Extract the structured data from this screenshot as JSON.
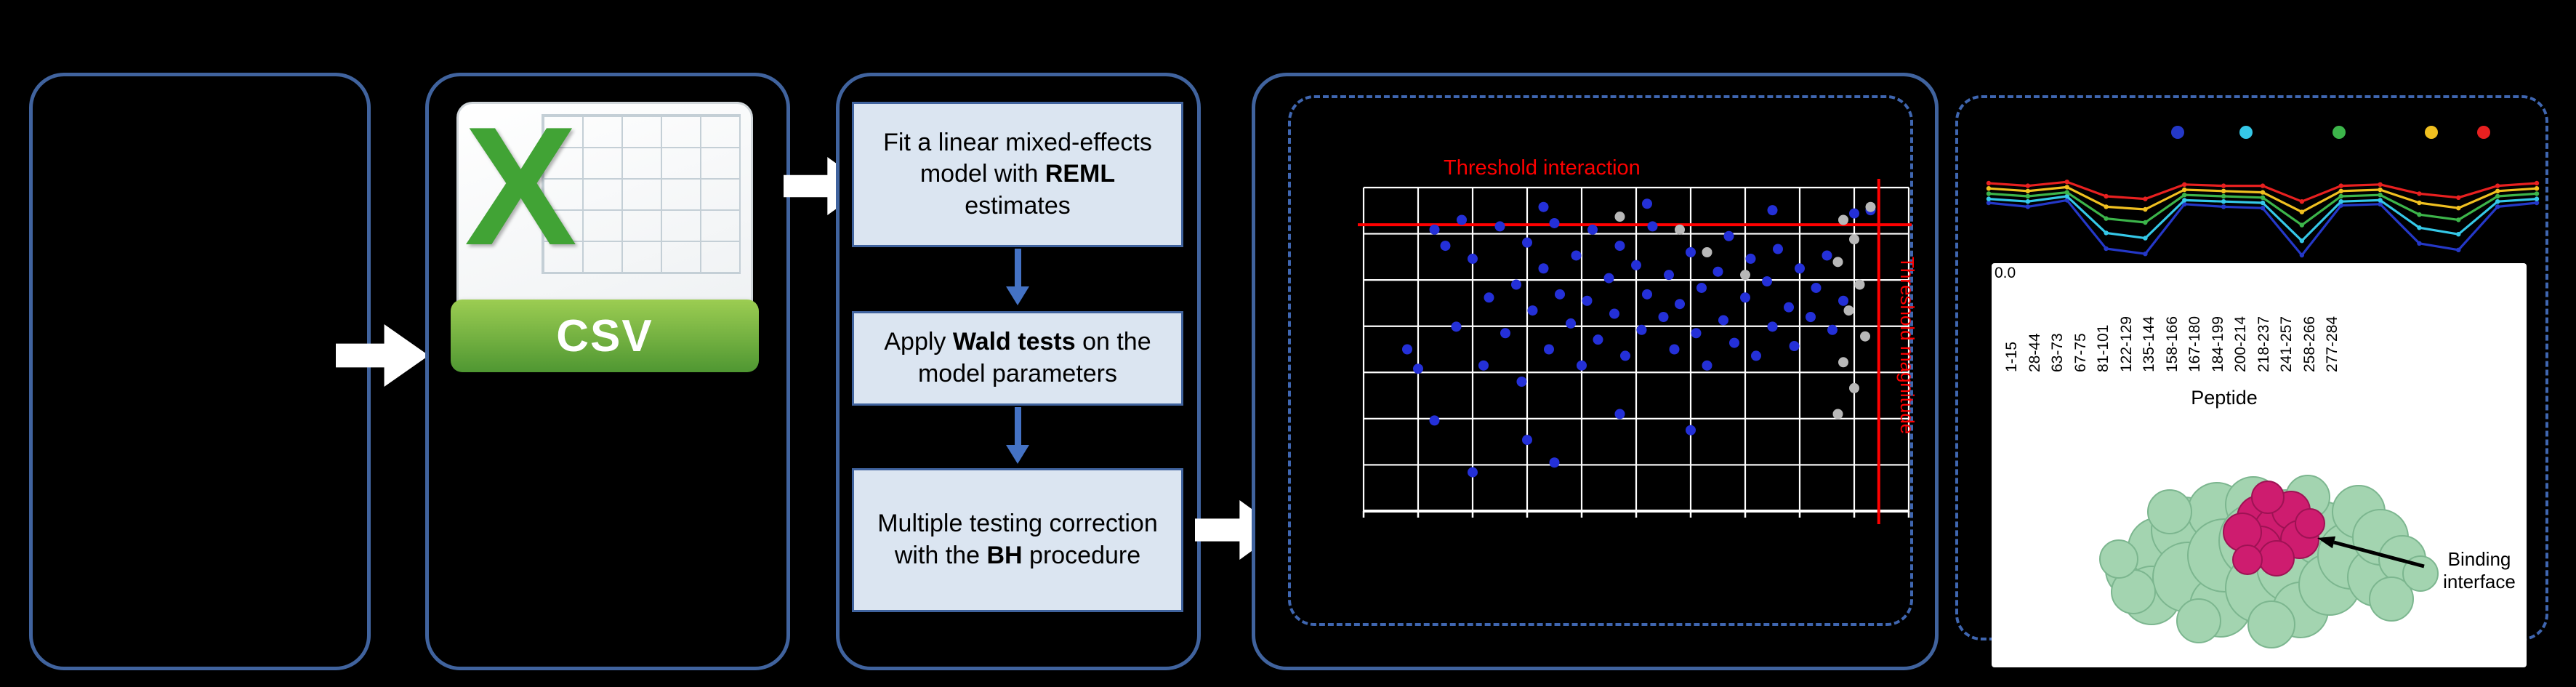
{
  "colors": {
    "background": "#000000",
    "panel_border": "#40639e",
    "dashed_border": "#3f66b0",
    "step_fill": "#dbe5f1",
    "step_border": "#40639e",
    "down_arrow": "#4472c4",
    "flow_arrow": "#ffffff",
    "csv_green": "#41a335",
    "threshold_red": "#ff0000",
    "scatter_blue": "#2430d8",
    "scatter_gray": "#b8b8b8"
  },
  "flow": {
    "csv_label": "CSV",
    "steps": [
      {
        "pre": "Fit a linear mixed-effects model with ",
        "bold": "REML",
        "post": " estimates"
      },
      {
        "pre": "Apply ",
        "bold": "Wald tests",
        "post": " on the model parameters"
      },
      {
        "pre": "Multiple testing correction with the ",
        "bold": "BH",
        "post": " procedure"
      }
    ]
  },
  "chart_data": [
    {
      "type": "scatter",
      "name": "interaction-scatter",
      "title_h": "Threshold interaction",
      "title_v": "Threshold magnitude",
      "grid_cols": 10,
      "grid_rows": 7,
      "threshold_y_frac": 0.115,
      "threshold_x_frac": 0.945,
      "blue_points": [
        [
          0.08,
          0.5
        ],
        [
          0.1,
          0.56
        ],
        [
          0.13,
          0.13
        ],
        [
          0.15,
          0.18
        ],
        [
          0.17,
          0.43
        ],
        [
          0.18,
          0.1
        ],
        [
          0.2,
          0.22
        ],
        [
          0.22,
          0.55
        ],
        [
          0.23,
          0.34
        ],
        [
          0.25,
          0.12
        ],
        [
          0.26,
          0.45
        ],
        [
          0.28,
          0.3
        ],
        [
          0.29,
          0.6
        ],
        [
          0.3,
          0.17
        ],
        [
          0.31,
          0.38
        ],
        [
          0.33,
          0.25
        ],
        [
          0.34,
          0.5
        ],
        [
          0.35,
          0.11
        ],
        [
          0.36,
          0.33
        ],
        [
          0.38,
          0.42
        ],
        [
          0.39,
          0.21
        ],
        [
          0.4,
          0.55
        ],
        [
          0.41,
          0.35
        ],
        [
          0.42,
          0.13
        ],
        [
          0.43,
          0.47
        ],
        [
          0.45,
          0.28
        ],
        [
          0.46,
          0.39
        ],
        [
          0.47,
          0.18
        ],
        [
          0.48,
          0.52
        ],
        [
          0.5,
          0.24
        ],
        [
          0.51,
          0.44
        ],
        [
          0.52,
          0.33
        ],
        [
          0.53,
          0.12
        ],
        [
          0.55,
          0.4
        ],
        [
          0.56,
          0.27
        ],
        [
          0.57,
          0.5
        ],
        [
          0.58,
          0.36
        ],
        [
          0.6,
          0.2
        ],
        [
          0.61,
          0.45
        ],
        [
          0.62,
          0.31
        ],
        [
          0.63,
          0.55
        ],
        [
          0.65,
          0.26
        ],
        [
          0.66,
          0.41
        ],
        [
          0.67,
          0.15
        ],
        [
          0.68,
          0.48
        ],
        [
          0.7,
          0.34
        ],
        [
          0.71,
          0.22
        ],
        [
          0.72,
          0.52
        ],
        [
          0.74,
          0.29
        ],
        [
          0.75,
          0.43
        ],
        [
          0.76,
          0.19
        ],
        [
          0.78,
          0.37
        ],
        [
          0.79,
          0.49
        ],
        [
          0.8,
          0.25
        ],
        [
          0.82,
          0.4
        ],
        [
          0.83,
          0.31
        ],
        [
          0.85,
          0.21
        ],
        [
          0.86,
          0.44
        ],
        [
          0.88,
          0.35
        ],
        [
          0.13,
          0.72
        ],
        [
          0.3,
          0.78
        ],
        [
          0.47,
          0.7
        ],
        [
          0.35,
          0.85
        ],
        [
          0.6,
          0.75
        ],
        [
          0.2,
          0.88
        ],
        [
          0.33,
          0.06
        ],
        [
          0.52,
          0.05
        ],
        [
          0.75,
          0.07
        ],
        [
          0.9,
          0.08
        ],
        [
          0.93,
          0.07
        ]
      ],
      "gray_points": [
        [
          0.88,
          0.1
        ],
        [
          0.9,
          0.16
        ],
        [
          0.87,
          0.23
        ],
        [
          0.91,
          0.3
        ],
        [
          0.89,
          0.38
        ],
        [
          0.92,
          0.46
        ],
        [
          0.88,
          0.54
        ],
        [
          0.9,
          0.62
        ],
        [
          0.87,
          0.7
        ],
        [
          0.93,
          0.06
        ],
        [
          0.58,
          0.13
        ],
        [
          0.63,
          0.2
        ],
        [
          0.7,
          0.27
        ],
        [
          0.47,
          0.09
        ]
      ]
    },
    {
      "type": "line",
      "name": "deuterium-uptake-per-peptide",
      "y_tick": "0.0",
      "xlabel": "Peptide",
      "peptides": [
        "1-15",
        "28-44",
        "63-73",
        "67-75",
        "81-101",
        "122-129",
        "135-144",
        "158-166",
        "167-180",
        "184-199",
        "200-214",
        "218-237",
        "241-257",
        "258-266",
        "277-284"
      ],
      "legend_colors": [
        "#2438c8",
        "#35c8e8",
        "#3cb54a",
        "#f0c020",
        "#e82020"
      ],
      "legend_x": [
        278,
        372,
        500,
        627,
        699
      ],
      "series": [
        {
          "color": "#2438c8",
          "values": [
            0.45,
            0.42,
            0.47,
            0.1,
            0.06,
            0.44,
            0.42,
            0.41,
            0.05,
            0.43,
            0.44,
            0.14,
            0.09,
            0.42,
            0.45
          ]
        },
        {
          "color": "#35c8e8",
          "values": [
            0.48,
            0.46,
            0.5,
            0.22,
            0.18,
            0.47,
            0.46,
            0.45,
            0.16,
            0.46,
            0.47,
            0.26,
            0.21,
            0.46,
            0.48
          ]
        },
        {
          "color": "#3cb54a",
          "values": [
            0.52,
            0.5,
            0.53,
            0.33,
            0.3,
            0.51,
            0.5,
            0.49,
            0.28,
            0.5,
            0.51,
            0.36,
            0.32,
            0.5,
            0.52
          ]
        },
        {
          "color": "#f0c020",
          "values": [
            0.56,
            0.54,
            0.57,
            0.42,
            0.4,
            0.55,
            0.54,
            0.53,
            0.38,
            0.54,
            0.55,
            0.45,
            0.41,
            0.54,
            0.56
          ]
        },
        {
          "color": "#e82020",
          "values": [
            0.6,
            0.58,
            0.61,
            0.5,
            0.48,
            0.59,
            0.58,
            0.58,
            0.46,
            0.58,
            0.59,
            0.52,
            0.49,
            0.58,
            0.6
          ]
        }
      ]
    }
  ],
  "protein": {
    "binding_label": "Binding interface"
  }
}
